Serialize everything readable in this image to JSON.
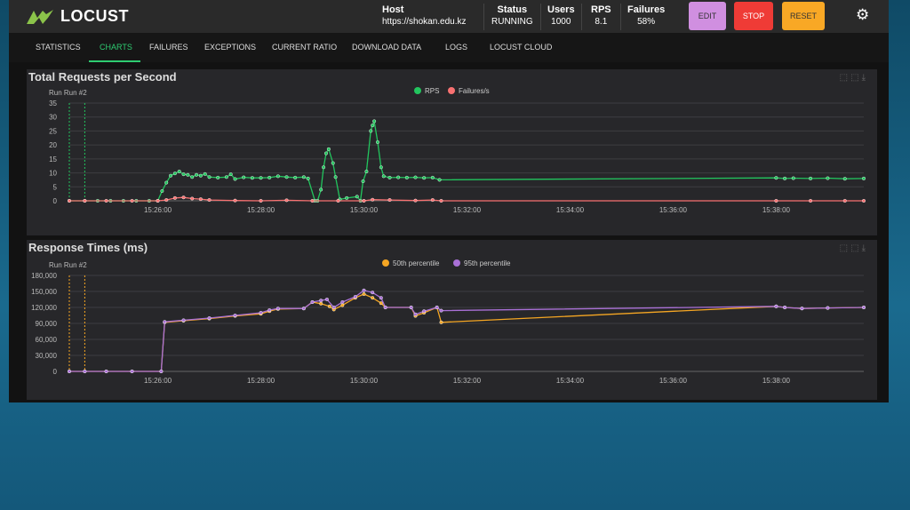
{
  "header": {
    "logo": "LOCUST",
    "host_label": "Host",
    "host": "https://shokan.edu.kz",
    "status_label": "Status",
    "status": "RUNNING",
    "users_label": "Users",
    "users": "1000",
    "rps_label": "RPS",
    "rps": "8.1",
    "failures_label": "Failures",
    "failures": "58%",
    "edit": "EDIT",
    "stop": "STOP",
    "reset": "RESET",
    "settings_icon": "gear-icon"
  },
  "tabs": [
    {
      "label": "STATISTICS"
    },
    {
      "label": "CHARTS",
      "active": true
    },
    {
      "label": "FAILURES"
    },
    {
      "label": "EXCEPTIONS"
    },
    {
      "label": "CURRENT RATIO"
    },
    {
      "label": "DOWNLOAD DATA"
    },
    {
      "label": "LOGS"
    },
    {
      "label": "LOCUST CLOUD"
    }
  ],
  "colors": {
    "accent": "#2ecc71",
    "rps": "#22c55e",
    "failures": "#f87171",
    "p50": "#f5a623",
    "p95": "#a970d6",
    "edit": "#d08fe0",
    "stop": "#ef3b36",
    "reset": "#f9a825"
  },
  "chart_data": [
    {
      "type": "line",
      "title": "Total Requests per Second",
      "run_label": "Run Run #2",
      "xlim": [
        "15:24:17",
        "15:39:42"
      ],
      "ylim": [
        0,
        35
      ],
      "yticks": [
        0,
        5,
        10,
        15,
        20,
        25,
        30,
        35
      ],
      "xticks": [
        "15:26:00",
        "15:28:00",
        "15:30:00",
        "15:32:00",
        "15:34:00",
        "15:36:00",
        "15:38:00"
      ],
      "run_markers": [
        "15:24:17",
        "15:24:35"
      ],
      "legend": "top-center",
      "grid": true,
      "series": [
        {
          "name": "RPS",
          "color": "#22c55e",
          "points": [
            [
              "15:24:17",
              0
            ],
            [
              "15:24:35",
              0
            ],
            [
              "15:24:50",
              0
            ],
            [
              "15:25:05",
              0
            ],
            [
              "15:25:20",
              0
            ],
            [
              "15:25:35",
              0
            ],
            [
              "15:25:50",
              0
            ],
            [
              "15:26:00",
              0
            ],
            [
              "15:26:05",
              3.5
            ],
            [
              "15:26:10",
              6.5
            ],
            [
              "15:26:15",
              9
            ],
            [
              "15:26:20",
              9.8
            ],
            [
              "15:26:25",
              10.5
            ],
            [
              "15:26:30",
              9.5
            ],
            [
              "15:26:35",
              9.3
            ],
            [
              "15:26:40",
              8.5
            ],
            [
              "15:26:45",
              9.3
            ],
            [
              "15:26:50",
              9
            ],
            [
              "15:26:55",
              9.6
            ],
            [
              "15:27:00",
              8.5
            ],
            [
              "15:27:10",
              8.3
            ],
            [
              "15:27:20",
              8.5
            ],
            [
              "15:27:25",
              9.5
            ],
            [
              "15:27:30",
              7.8
            ],
            [
              "15:27:40",
              8.4
            ],
            [
              "15:27:50",
              8.2
            ],
            [
              "15:28:00",
              8.2
            ],
            [
              "15:28:10",
              8.3
            ],
            [
              "15:28:20",
              8.8
            ],
            [
              "15:28:30",
              8.5
            ],
            [
              "15:28:40",
              8.3
            ],
            [
              "15:28:50",
              8.5
            ],
            [
              "15:28:55",
              8
            ],
            [
              "15:29:03",
              0
            ],
            [
              "15:29:06",
              0
            ],
            [
              "15:29:10",
              4
            ],
            [
              "15:29:13",
              12
            ],
            [
              "15:29:16",
              17
            ],
            [
              "15:29:19",
              18.5
            ],
            [
              "15:29:24",
              13.5
            ],
            [
              "15:29:27",
              8.5
            ],
            [
              "15:29:32",
              0.5
            ],
            [
              "15:29:40",
              1
            ],
            [
              "15:29:52",
              1.5
            ],
            [
              "15:29:56",
              0
            ],
            [
              "15:29:59",
              7
            ],
            [
              "15:30:03",
              10.5
            ],
            [
              "15:30:08",
              25
            ],
            [
              "15:30:10",
              27
            ],
            [
              "15:30:12",
              28.5
            ],
            [
              "15:30:16",
              21
            ],
            [
              "15:30:20",
              12
            ],
            [
              "15:30:23",
              8.8
            ],
            [
              "15:30:30",
              8.3
            ],
            [
              "15:30:40",
              8.4
            ],
            [
              "15:30:50",
              8.3
            ],
            [
              "15:31:00",
              8.4
            ],
            [
              "15:31:10",
              8.2
            ],
            [
              "15:31:20",
              8.3
            ],
            [
              "15:31:28",
              7.5
            ],
            [
              "15:38:00",
              8.2
            ],
            [
              "15:38:10",
              8
            ],
            [
              "15:38:20",
              8.1
            ],
            [
              "15:38:40",
              8
            ],
            [
              "15:39:00",
              8.1
            ],
            [
              "15:39:20",
              7.9
            ],
            [
              "15:39:42",
              8
            ]
          ]
        },
        {
          "name": "Failures/s",
          "color": "#f87171",
          "points": [
            [
              "15:24:17",
              0
            ],
            [
              "15:24:35",
              0
            ],
            [
              "15:25:00",
              0
            ],
            [
              "15:25:30",
              0
            ],
            [
              "15:26:00",
              0
            ],
            [
              "15:26:10",
              0.3
            ],
            [
              "15:26:20",
              1
            ],
            [
              "15:26:30",
              1.2
            ],
            [
              "15:26:40",
              0.8
            ],
            [
              "15:26:50",
              0.6
            ],
            [
              "15:27:00",
              0.3
            ],
            [
              "15:27:30",
              0.1
            ],
            [
              "15:28:00",
              0
            ],
            [
              "15:28:30",
              0.2
            ],
            [
              "15:29:00",
              0
            ],
            [
              "15:29:30",
              0
            ],
            [
              "15:30:00",
              0
            ],
            [
              "15:30:10",
              0.4
            ],
            [
              "15:30:30",
              0.3
            ],
            [
              "15:31:00",
              0.1
            ],
            [
              "15:31:20",
              0.3
            ],
            [
              "15:31:30",
              0
            ],
            [
              "15:38:00",
              0
            ],
            [
              "15:38:40",
              0
            ],
            [
              "15:39:20",
              0
            ],
            [
              "15:39:42",
              0
            ]
          ]
        }
      ]
    },
    {
      "type": "line",
      "title": "Response Times (ms)",
      "run_label": "Run Run #2",
      "xlim": [
        "15:24:17",
        "15:39:42"
      ],
      "ylim": [
        0,
        180000
      ],
      "yticks": [
        "0",
        "30,000",
        "60,000",
        "90,000",
        "120,000",
        "150,000",
        "180,000"
      ],
      "xticks": [
        "15:26:00",
        "15:28:00",
        "15:30:00",
        "15:32:00",
        "15:34:00",
        "15:36:00",
        "15:38:00"
      ],
      "run_markers": [
        "15:24:17",
        "15:24:35"
      ],
      "legend": "top-center",
      "grid": true,
      "series": [
        {
          "name": "50th percentile",
          "color": "#f5a623",
          "points": [
            [
              "15:24:17",
              0
            ],
            [
              "15:24:35",
              0
            ],
            [
              "15:25:00",
              0
            ],
            [
              "15:25:30",
              0
            ],
            [
              "15:26:04",
              0
            ],
            [
              "15:26:08",
              92000
            ],
            [
              "15:26:30",
              95000
            ],
            [
              "15:27:00",
              99000
            ],
            [
              "15:27:30",
              104000
            ],
            [
              "15:28:00",
              108000
            ],
            [
              "15:28:10",
              113000
            ],
            [
              "15:28:20",
              117000
            ],
            [
              "15:28:50",
              118000
            ],
            [
              "15:29:00",
              130000
            ],
            [
              "15:29:10",
              127000
            ],
            [
              "15:29:20",
              122000
            ],
            [
              "15:29:25",
              116000
            ],
            [
              "15:29:35",
              124000
            ],
            [
              "15:29:50",
              138000
            ],
            [
              "15:30:00",
              145000
            ],
            [
              "15:30:10",
              138000
            ],
            [
              "15:30:20",
              128000
            ],
            [
              "15:30:25",
              120000
            ],
            [
              "15:30:55",
              120000
            ],
            [
              "15:31:00",
              104000
            ],
            [
              "15:31:10",
              110000
            ],
            [
              "15:31:25",
              120000
            ],
            [
              "15:31:30",
              92000
            ],
            [
              "15:38:00",
              122000
            ],
            [
              "15:38:10",
              120000
            ],
            [
              "15:38:30",
              118000
            ],
            [
              "15:39:00",
              119000
            ],
            [
              "15:39:42",
              120000
            ]
          ]
        },
        {
          "name": "95th percentile",
          "color": "#a970d6",
          "points": [
            [
              "15:24:17",
              0
            ],
            [
              "15:24:35",
              0
            ],
            [
              "15:25:00",
              0
            ],
            [
              "15:25:30",
              0
            ],
            [
              "15:26:04",
              0
            ],
            [
              "15:26:08",
              93000
            ],
            [
              "15:26:30",
              96000
            ],
            [
              "15:27:00",
              100000
            ],
            [
              "15:27:30",
              105000
            ],
            [
              "15:28:00",
              110000
            ],
            [
              "15:28:10",
              115000
            ],
            [
              "15:28:20",
              118000
            ],
            [
              "15:28:50",
              118000
            ],
            [
              "15:29:00",
              130000
            ],
            [
              "15:29:10",
              133000
            ],
            [
              "15:29:17",
              135000
            ],
            [
              "15:29:25",
              120000
            ],
            [
              "15:29:35",
              130000
            ],
            [
              "15:29:50",
              140000
            ],
            [
              "15:30:00",
              152000
            ],
            [
              "15:30:10",
              148000
            ],
            [
              "15:30:20",
              138000
            ],
            [
              "15:30:25",
              120000
            ],
            [
              "15:30:55",
              120000
            ],
            [
              "15:31:00",
              107000
            ],
            [
              "15:31:10",
              113000
            ],
            [
              "15:31:25",
              120000
            ],
            [
              "15:31:30",
              114000
            ],
            [
              "15:38:00",
              122000
            ],
            [
              "15:38:10",
              120000
            ],
            [
              "15:38:30",
              118000
            ],
            [
              "15:39:00",
              119000
            ],
            [
              "15:39:42",
              120000
            ]
          ]
        }
      ]
    }
  ]
}
